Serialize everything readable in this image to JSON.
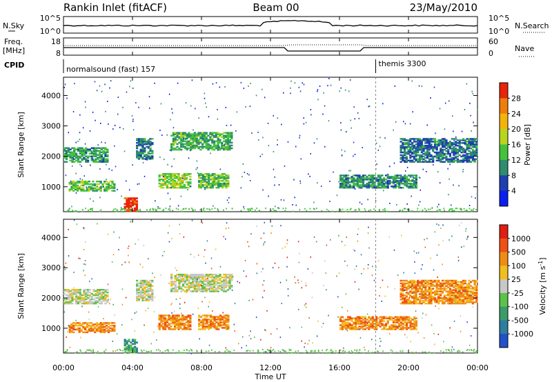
{
  "header": {
    "station": "Rankin Inlet (fitACF)",
    "beam": "Beam 00",
    "date": "23/May/2010"
  },
  "noise_panel": {
    "left_label": "N.Sky",
    "right_label": "N.Search",
    "tick_top": "10^5",
    "tick_bottom": "10^0",
    "right_tick_top": "10^5",
    "right_tick_bottom": "10^0"
  },
  "freq_panel": {
    "left_label_1": "Freq.",
    "left_label_2": "[MHz]",
    "left_tick_top": "18",
    "left_tick_bottom": "8",
    "right_label": "Nave",
    "right_tick_top": "60",
    "right_tick_bottom": "0"
  },
  "cpid": {
    "label": "CPID",
    "segments": [
      {
        "name": "normalsound (fast) 157",
        "start_hour": 0
      },
      {
        "name": "themis 3300",
        "start_hour": 18.1
      }
    ]
  },
  "time_axis": {
    "label": "Time UT",
    "ticks": [
      "00:00",
      "04:00",
      "08:00",
      "12:00",
      "16:00",
      "20:00",
      "00:00"
    ]
  },
  "chart_data": [
    {
      "type": "heatmap",
      "title": "",
      "xlabel": "Time UT",
      "ylabel": "Slant Range [km]",
      "xlim": [
        0,
        24
      ],
      "ylim": [
        180,
        4600
      ],
      "yticks": [
        "1000",
        "2000",
        "3000",
        "4000"
      ],
      "colorbar": {
        "label": "Power [dB]",
        "range": [
          0,
          32
        ],
        "ticks": [
          "4",
          "8",
          "12",
          "16",
          "20",
          "24",
          "28"
        ],
        "colors": [
          "#0a1ef0",
          "#1f3fb0",
          "#2f8c6e",
          "#44c23c",
          "#b9d41e",
          "#f3b40a",
          "#f07d0a",
          "#e8240a"
        ]
      },
      "regions": [
        {
          "t0": 0.0,
          "t1": 2.6,
          "r0": 1800,
          "r1": 2300,
          "level": 2.4
        },
        {
          "t0": 0.3,
          "t1": 3.0,
          "r0": 850,
          "r1": 1200,
          "level": 3.0
        },
        {
          "t0": 3.5,
          "t1": 4.3,
          "r0": 180,
          "r1": 650,
          "level": 7.4
        },
        {
          "t0": 4.2,
          "t1": 5.2,
          "r0": 1900,
          "r1": 2600,
          "level": 1.8
        },
        {
          "t0": 5.5,
          "t1": 7.4,
          "r0": 950,
          "r1": 1450,
          "level": 3.6
        },
        {
          "t0": 6.2,
          "t1": 9.8,
          "r0": 2200,
          "r1": 2800,
          "level": 2.6
        },
        {
          "t0": 7.8,
          "t1": 9.6,
          "r0": 950,
          "r1": 1450,
          "level": 3.0
        },
        {
          "t0": 16.0,
          "t1": 20.5,
          "r0": 950,
          "r1": 1400,
          "level": 2.2
        },
        {
          "t0": 19.5,
          "t1": 24.0,
          "r0": 1800,
          "r1": 2600,
          "level": 1.6
        }
      ]
    },
    {
      "type": "heatmap",
      "title": "",
      "xlabel": "Time UT",
      "ylabel": "Slant Range [km]",
      "xlim": [
        0,
        24
      ],
      "ylim": [
        180,
        4600
      ],
      "yticks": [
        "1000",
        "2000",
        "3000",
        "4000"
      ],
      "colorbar": {
        "label": "Velocity [m s^-1]",
        "ticks": [
          "1000",
          "500",
          "100",
          "25",
          "-25",
          "-100",
          "-500",
          "-1000"
        ],
        "colors": [
          "#2250c8",
          "#2f7da0",
          "#3a9c6a",
          "#5cc24a",
          "#c8c8c8",
          "#f0be1e",
          "#f08c14",
          "#f05014",
          "#e01e14"
        ]
      },
      "regions": [
        {
          "t0": 0.0,
          "t1": 2.6,
          "r0": 1800,
          "r1": 2300,
          "level": 4
        },
        {
          "t0": 0.3,
          "t1": 3.0,
          "r0": 850,
          "r1": 1200,
          "level": 6
        },
        {
          "t0": 3.5,
          "t1": 4.3,
          "r0": 180,
          "r1": 650,
          "level": 2
        },
        {
          "t0": 4.2,
          "t1": 5.2,
          "r0": 1900,
          "r1": 2600,
          "level": 4
        },
        {
          "t0": 5.5,
          "t1": 7.4,
          "r0": 950,
          "r1": 1450,
          "level": 6
        },
        {
          "t0": 6.2,
          "t1": 9.8,
          "r0": 2200,
          "r1": 2800,
          "level": 4
        },
        {
          "t0": 7.8,
          "t1": 9.6,
          "r0": 950,
          "r1": 1450,
          "level": 6
        },
        {
          "t0": 16.0,
          "t1": 20.5,
          "r0": 950,
          "r1": 1400,
          "level": 6
        },
        {
          "t0": 19.5,
          "t1": 24.0,
          "r0": 1800,
          "r1": 2600,
          "level": 6
        }
      ]
    }
  ]
}
